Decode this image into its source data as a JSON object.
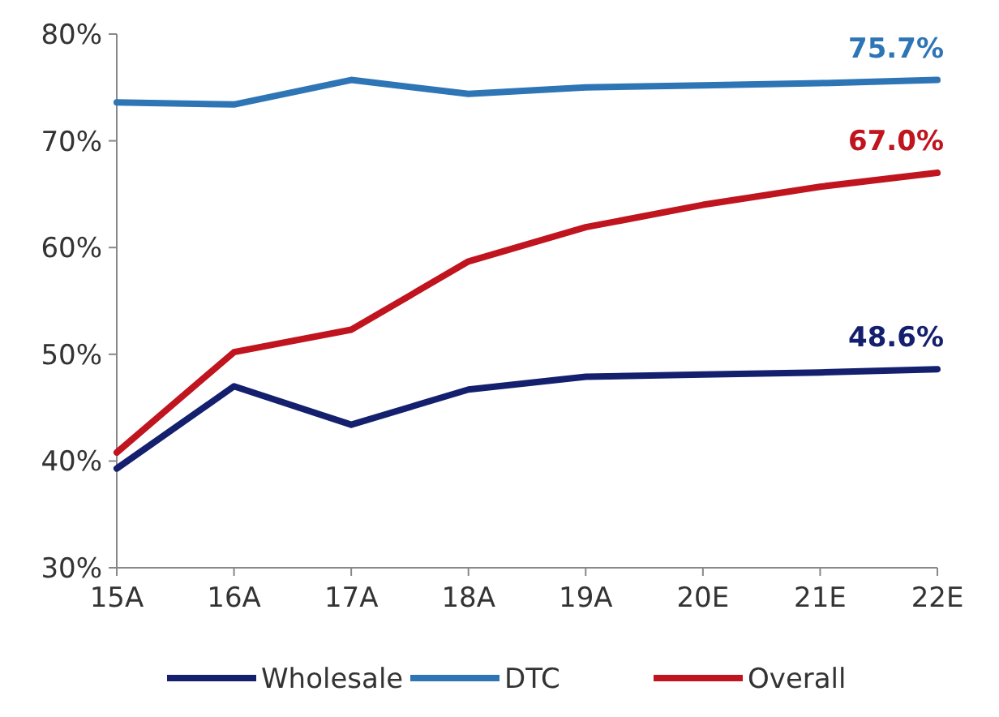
{
  "chart_data": {
    "type": "line",
    "categories": [
      "15A",
      "16A",
      "17A",
      "18A",
      "19A",
      "20E",
      "21E",
      "22E"
    ],
    "series": [
      {
        "name": "Wholesale",
        "color": "#14206e",
        "values": [
          39.3,
          47.0,
          43.4,
          46.7,
          47.9,
          48.1,
          48.3,
          48.6
        ],
        "value_labels": [
          null,
          null,
          null,
          null,
          null,
          null,
          null,
          "48.6%"
        ]
      },
      {
        "name": "DTC",
        "color": "#2e75b6",
        "values": [
          73.6,
          73.4,
          75.7,
          74.4,
          75.0,
          75.2,
          75.4,
          75.7
        ],
        "value_labels": [
          null,
          null,
          null,
          null,
          null,
          null,
          null,
          "75.7%"
        ]
      },
      {
        "name": "Overall",
        "color": "#c0141e",
        "values": [
          40.8,
          50.2,
          52.3,
          58.7,
          61.9,
          64.0,
          65.7,
          67.0
        ],
        "value_labels": [
          null,
          null,
          null,
          null,
          null,
          null,
          null,
          "67.0%"
        ]
      }
    ],
    "ylim": [
      30,
      80
    ],
    "yticks": [
      {
        "value": 30,
        "label": "30%"
      },
      {
        "value": 40,
        "label": "40%"
      },
      {
        "value": 50,
        "label": "50%"
      },
      {
        "value": 60,
        "label": "60%"
      },
      {
        "value": 70,
        "label": "70%"
      },
      {
        "value": 80,
        "label": "80%"
      }
    ],
    "grid": false,
    "legend": "bottom",
    "marker": "none",
    "line_style": "solid"
  }
}
